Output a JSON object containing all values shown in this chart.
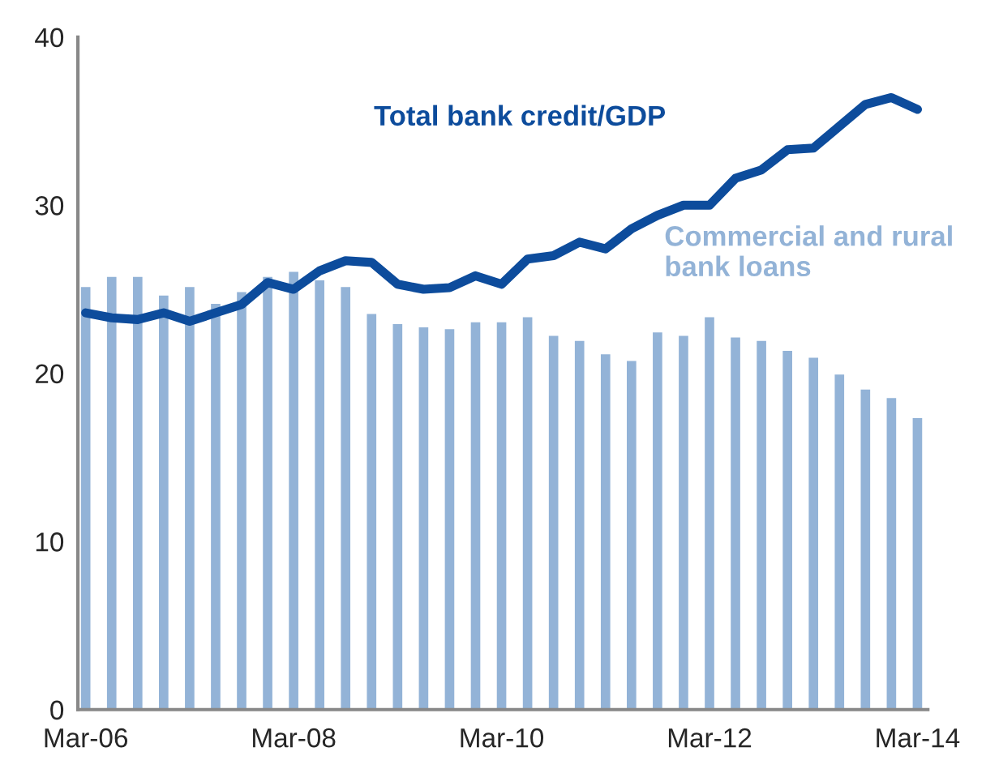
{
  "chart_data": {
    "type": "bar",
    "categories": [
      "Mar-06",
      null,
      null,
      null,
      null,
      null,
      null,
      null,
      "Mar-08",
      null,
      null,
      null,
      null,
      null,
      null,
      null,
      "Mar-10",
      null,
      null,
      null,
      null,
      null,
      null,
      null,
      "Mar-12",
      null,
      null,
      null,
      null,
      null,
      null,
      null,
      "Mar-14"
    ],
    "series": [
      {
        "name": "Commercial and rural bank loans",
        "color": "#93b3d7",
        "values": [
          25.2,
          25.8,
          25.8,
          24.7,
          25.2,
          24.2,
          24.9,
          25.8,
          26.1,
          25.6,
          25.2,
          23.6,
          23.0,
          22.8,
          22.7,
          23.1,
          23.1,
          23.4,
          22.3,
          22.0,
          21.2,
          20.8,
          22.5,
          22.3,
          23.4,
          22.2,
          22.0,
          21.4,
          21.0,
          20.0,
          19.1,
          18.6,
          17.4
        ]
      },
      {
        "name": "Total bank credit/GDP",
        "type": "line",
        "color": "#0d4c9c",
        "values": [
          23.6,
          23.3,
          23.2,
          23.6,
          23.1,
          23.6,
          24.1,
          25.4,
          25.0,
          26.1,
          26.7,
          26.6,
          25.3,
          25.0,
          25.1,
          25.8,
          25.3,
          26.8,
          27.0,
          27.8,
          27.4,
          28.6,
          29.4,
          30.0,
          30.0,
          31.6,
          32.1,
          33.3,
          33.4,
          34.7,
          36.0,
          36.4,
          35.7
        ]
      }
    ],
    "ylim": [
      0,
      40
    ],
    "yticks": [
      0,
      10,
      20,
      30,
      40
    ],
    "grid": false,
    "legend": false
  }
}
